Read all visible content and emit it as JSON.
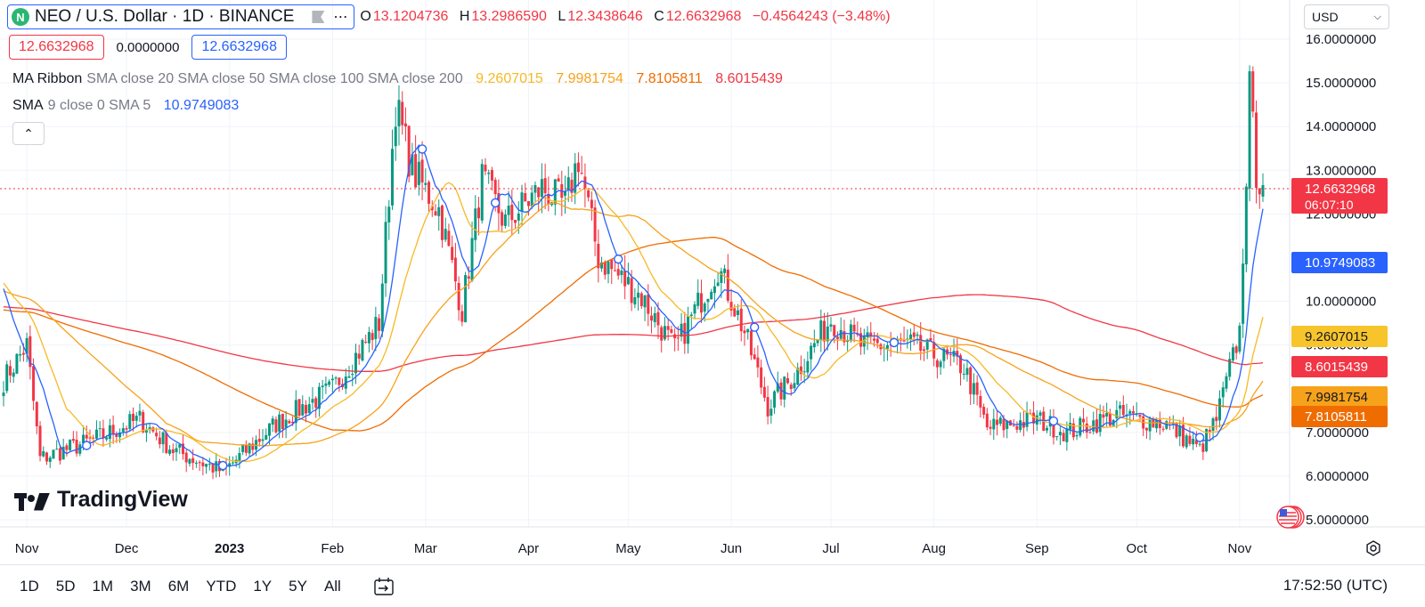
{
  "header": {
    "logo_letter": "N",
    "symbol_title": "NEO / U.S. Dollar · 1D · BINANCE",
    "more_icon": "⋯",
    "ohlc": {
      "o_label": "O",
      "o_value": "13.1204736",
      "h_label": "H",
      "h_value": "13.2986590",
      "l_label": "L",
      "l_value": "12.3438646",
      "c_label": "C",
      "c_value": "12.6632968",
      "change": "−0.4564243 (−3.48%)"
    },
    "bid": "12.6632968",
    "spread": "0.0000000",
    "ask": "12.6632968"
  },
  "indicators": {
    "ma_ribbon": {
      "name": "MA Ribbon",
      "params": "SMA close 20 SMA close 50 SMA close 100 SMA close 200",
      "values": [
        "9.2607015",
        "7.9981754",
        "7.8105811",
        "8.6015439"
      ]
    },
    "sma": {
      "name": "SMA",
      "params": "9 close 0 SMA 5",
      "value": "10.9749083"
    }
  },
  "currency": "USD",
  "time_axis": [
    "Nov",
    "Dec",
    "2023",
    "Feb",
    "Mar",
    "Apr",
    "May",
    "Jun",
    "Jul",
    "Aug",
    "Sep",
    "Oct",
    "Nov"
  ],
  "price_axis": [
    "16.0000000",
    "15.0000000",
    "14.0000000",
    "13.0000000",
    "12.0000000",
    "10.0000000",
    "9.0000000",
    "7.0000000",
    "6.0000000",
    "5.0000000"
  ],
  "price_labels": {
    "last": "12.6632968",
    "countdown": "06:07:10",
    "sma": "10.9749083",
    "ma20": "9.2607015",
    "ma200": "8.6015439",
    "ma50": "7.9981754",
    "ma100": "7.8105811"
  },
  "brand": "TradingView",
  "bottom_bar": {
    "ranges": [
      "1D",
      "5D",
      "1M",
      "3M",
      "6M",
      "YTD",
      "1Y",
      "5Y",
      "All"
    ],
    "clock": "17:52:50 (UTC)"
  },
  "colors": {
    "up": "#089981",
    "down": "#f23645",
    "sma": "#2962ff",
    "ma20": "#f7b924",
    "ma50": "#f7a21b",
    "ma100": "#ef6c00",
    "ma200": "#f23645"
  },
  "chart_data": {
    "type": "candlestick",
    "x_range": [
      "2022-10-25",
      "2023-11-08"
    ],
    "y_range": [
      5,
      16.3
    ],
    "grid": true,
    "ohlc_keypoints": [
      [
        "2022-10-25",
        8.2
      ],
      [
        "2022-11-01",
        9.0
      ],
      [
        "2022-11-05",
        6.4
      ],
      [
        "2022-11-20",
        6.8
      ],
      [
        "2022-12-05",
        7.3
      ],
      [
        "2022-12-15",
        6.6
      ],
      [
        "2022-12-30",
        6.1
      ],
      [
        "2023-01-15",
        7.2
      ],
      [
        "2023-02-01",
        8.0
      ],
      [
        "2023-02-15",
        9.5
      ],
      [
        "2023-02-20",
        14.5
      ],
      [
        "2023-02-25",
        13.0
      ],
      [
        "2023-03-05",
        12.1
      ],
      [
        "2023-03-12",
        9.8
      ],
      [
        "2023-03-18",
        12.8
      ],
      [
        "2023-03-25",
        11.8
      ],
      [
        "2023-04-05",
        12.6
      ],
      [
        "2023-04-12",
        12.2
      ],
      [
        "2023-04-16",
        13.3
      ],
      [
        "2023-04-22",
        11.0
      ],
      [
        "2023-05-05",
        10.1
      ],
      [
        "2023-05-15",
        8.9
      ],
      [
        "2023-05-28",
        10.8
      ],
      [
        "2023-06-05",
        9.3
      ],
      [
        "2023-06-12",
        7.6
      ],
      [
        "2023-06-20",
        8.3
      ],
      [
        "2023-07-01",
        9.6
      ],
      [
        "2023-07-10",
        9.0
      ],
      [
        "2023-07-25",
        9.0
      ],
      [
        "2023-08-10",
        8.5
      ],
      [
        "2023-08-17",
        7.1
      ],
      [
        "2023-09-01",
        7.3
      ],
      [
        "2023-09-10",
        7.0
      ],
      [
        "2023-09-25",
        7.4
      ],
      [
        "2023-10-10",
        7.2
      ],
      [
        "2023-10-20",
        6.6
      ],
      [
        "2023-10-25",
        7.3
      ],
      [
        "2023-11-01",
        9.3
      ],
      [
        "2023-11-04",
        14.8
      ],
      [
        "2023-11-06",
        13.0
      ],
      [
        "2023-11-08",
        12.66
      ]
    ],
    "series": [
      {
        "name": "SMA 9",
        "last": 10.9749083
      },
      {
        "name": "SMA close 20",
        "last": 9.2607015
      },
      {
        "name": "SMA close 50",
        "last": 7.9981754
      },
      {
        "name": "SMA close 100",
        "last": 7.8105811
      },
      {
        "name": "SMA close 200",
        "last": 8.6015439
      }
    ]
  }
}
